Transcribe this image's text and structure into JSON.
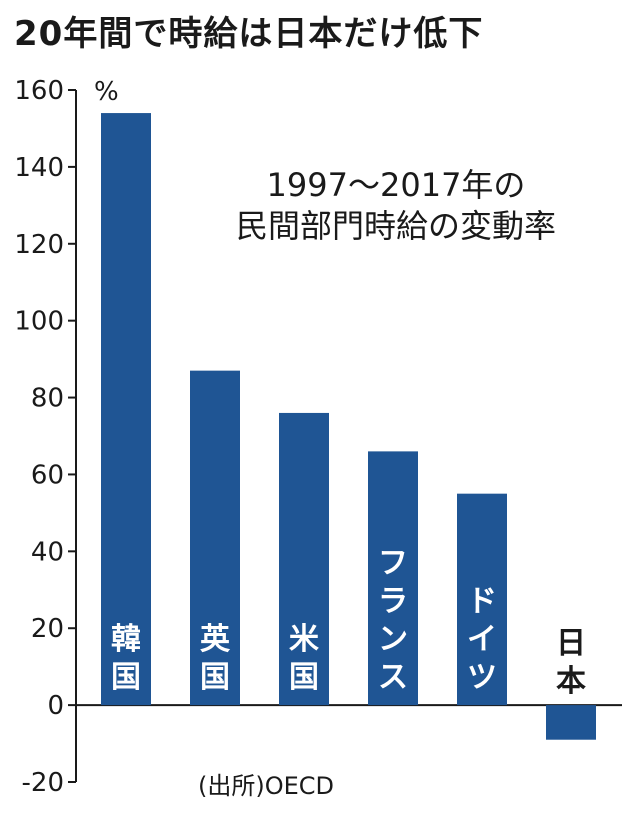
{
  "chart_data": {
    "type": "bar",
    "title": "20年間で時給は日本だけ低下",
    "subtitle_lines": [
      "1997〜2017年の",
      "民間部門時給の変動率"
    ],
    "ylabel": "%",
    "ylim": [
      -20,
      160
    ],
    "yticks": [
      160,
      140,
      120,
      100,
      80,
      60,
      40,
      20,
      0,
      -20
    ],
    "categories": [
      "韓国",
      "英国",
      "米国",
      "フランス",
      "ドイツ",
      "日本"
    ],
    "values": [
      154,
      87,
      76,
      66,
      55,
      -9
    ],
    "source": "(出所)OECD",
    "grid": false,
    "bar_color": "#1f5594",
    "label_color_inside": "#ffffff",
    "label_color_outside": "#1a1a1a"
  }
}
